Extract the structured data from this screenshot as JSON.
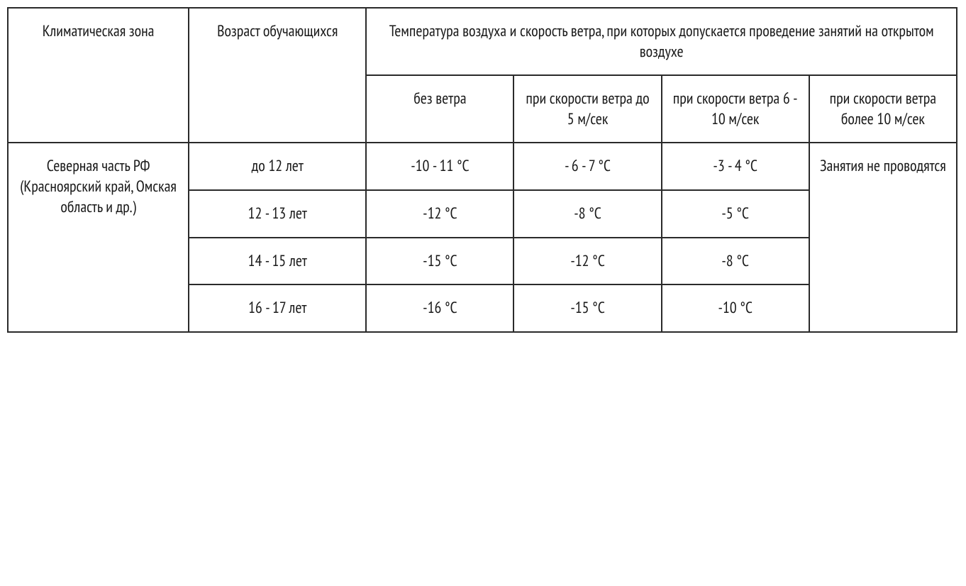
{
  "table": {
    "type": "table",
    "border_color": "#2a2a2a",
    "background_color": "#ffffff",
    "text_color": "#1a1a1a",
    "font_size": 22,
    "column_widths": {
      "zone": 255,
      "age": 250,
      "sub": 208
    },
    "headers": {
      "zone": "Климатическая зона",
      "age": "Возраст обучающихся",
      "temp_group": "Температура воздуха и скорость  ветра, при которых допускается проведение  занятий на открытом воздухе",
      "no_wind": "без ветра",
      "wind_5": "при скорости ветра до 5 м/сек",
      "wind_10": "при скорости ветра 6 - 10 м/сек",
      "wind_over_10": "при скорости ветра более 10 м/сек"
    },
    "rows": [
      {
        "zone": "Северная часть РФ (Красноярский край, Омская область и др.)",
        "age": "до 12 лет",
        "no_wind": "-10 - 11 °С",
        "wind_5": "- 6 - 7 °С",
        "wind_10": "-3 - 4 °С",
        "wind_over_10": "Занятия не проводятся"
      },
      {
        "age": "12 - 13 лет",
        "no_wind": "-12 °С",
        "wind_5": "-8 °С",
        "wind_10": "-5 °С"
      },
      {
        "age": "14 - 15 лет",
        "no_wind": "-15 °С",
        "wind_5": "-12 °С",
        "wind_10": "-8 °С"
      },
      {
        "age": "16 - 17 лет",
        "no_wind": "-16 °С",
        "wind_5": "-15 °С",
        "wind_10": "-10 °С"
      }
    ]
  }
}
